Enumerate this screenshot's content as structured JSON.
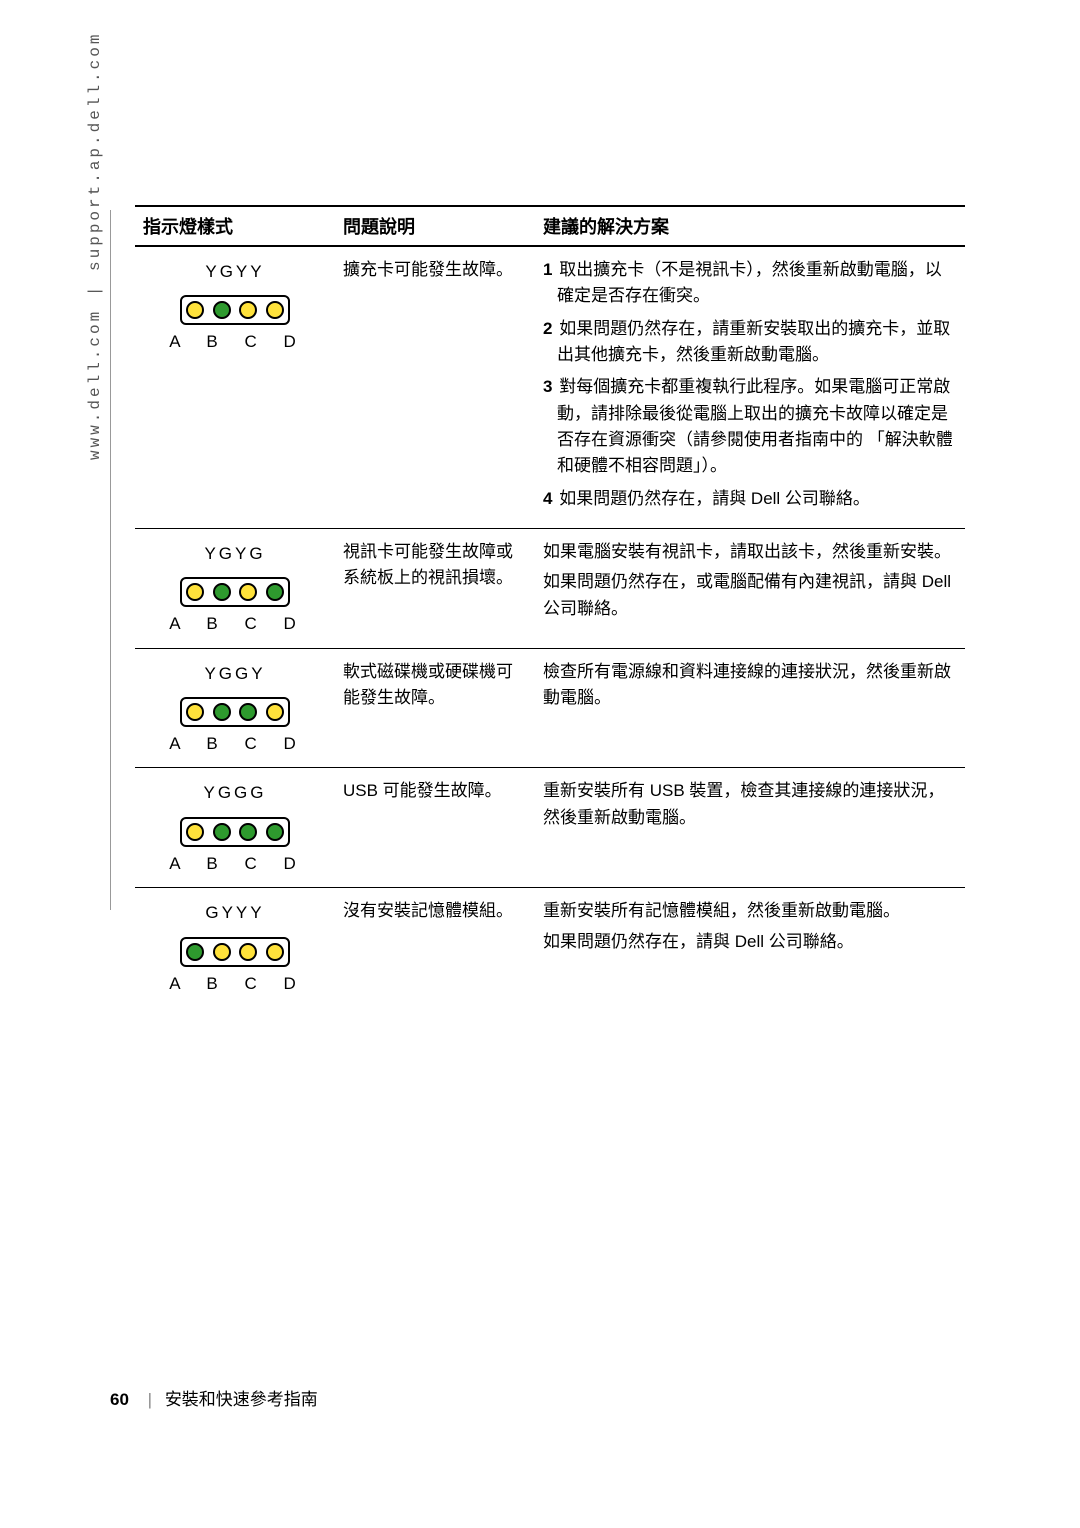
{
  "vertical_url": "www.dell.com | support.ap.dell.com",
  "headers": {
    "pattern": "指示燈樣式",
    "problem": "問題說明",
    "solution": "建議的解決方案"
  },
  "abcd_label": "A B C D",
  "led_colors": {
    "Y": "#ffe23b",
    "G": "#2e9a2e"
  },
  "rows": [
    {
      "code": "YGYY",
      "leds": [
        "Y",
        "G",
        "Y",
        "Y"
      ],
      "problem": "擴充卡可能發生故障。",
      "solutions": [
        {
          "num": "1",
          "text": "取出擴充卡（不是視訊卡），然後重新啟動電腦，以確定是否存在衝突。"
        },
        {
          "num": "2",
          "text": "如果問題仍然存在，請重新安裝取出的擴充卡，並取出其他擴充卡，然後重新啟動電腦。"
        },
        {
          "num": "3",
          "text": "對每個擴充卡都重複執行此程序。如果電腦可正常啟動，請排除最後從電腦上取出的擴充卡故障以確定是否存在資源衝突（請參閱使用者指南中的 「解決軟體和硬體不相容問題」）。"
        },
        {
          "num": "4",
          "text": "如果問題仍然存在，請與 Dell 公司聯絡。"
        }
      ]
    },
    {
      "code": "YGYG",
      "leds": [
        "Y",
        "G",
        "Y",
        "G"
      ],
      "problem": "視訊卡可能發生故障或系統板上的視訊損壞。",
      "solutions_plain": [
        "如果電腦安裝有視訊卡，請取出該卡，然後重新安裝。",
        "如果問題仍然存在，或電腦配備有內建視訊，請與 Dell 公司聯絡。"
      ]
    },
    {
      "code": "YGGY",
      "leds": [
        "Y",
        "G",
        "G",
        "Y"
      ],
      "problem": "軟式磁碟機或硬碟機可能發生故障。",
      "solutions_plain": [
        "檢查所有電源線和資料連接線的連接狀況，然後重新啟動電腦。"
      ]
    },
    {
      "code": "YGGG",
      "leds": [
        "Y",
        "G",
        "G",
        "G"
      ],
      "problem": "USB 可能發生故障。",
      "solutions_plain": [
        "重新安裝所有 USB 裝置，檢查其連接線的連接狀況，然後重新啟動電腦。"
      ]
    },
    {
      "code": "GYYY",
      "leds": [
        "G",
        "Y",
        "Y",
        "Y"
      ],
      "problem": "沒有安裝記憶體模組。",
      "solutions_plain": [
        "重新安裝所有記憶體模組，然後重新啟動電腦。",
        "如果問題仍然存在，請與 Dell 公司聯絡。"
      ]
    }
  ],
  "footer": {
    "page": "60",
    "divider": "|",
    "title": "安裝和快速參考指南"
  }
}
